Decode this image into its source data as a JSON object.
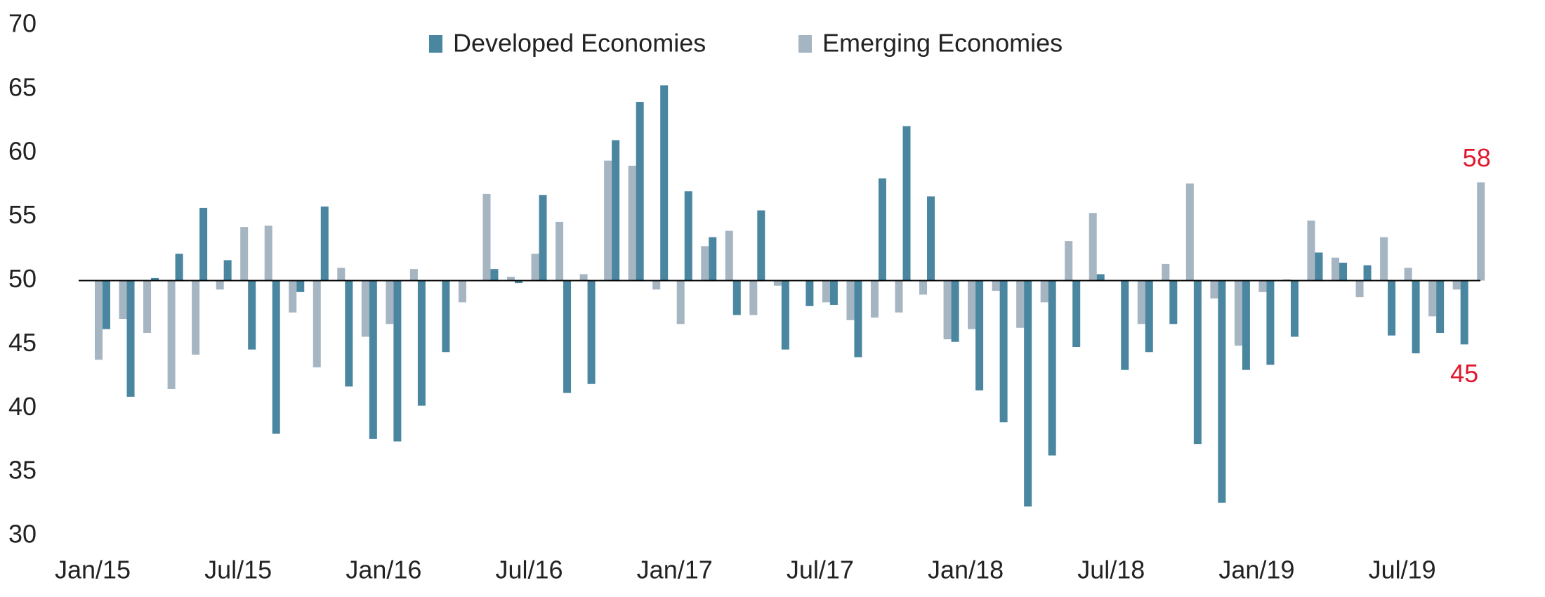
{
  "chart_data": {
    "type": "bar",
    "categories": [
      "Jan/15",
      null,
      null,
      null,
      null,
      null,
      "Jul/15",
      null,
      null,
      null,
      null,
      null,
      "Jan/16",
      null,
      null,
      null,
      null,
      null,
      "Jul/16",
      null,
      null,
      null,
      null,
      null,
      "Jan/17",
      null,
      null,
      null,
      null,
      null,
      "Jul/17",
      null,
      null,
      null,
      null,
      null,
      "Jan/18",
      null,
      null,
      null,
      null,
      null,
      "Jul/18",
      null,
      null,
      null,
      null,
      null,
      "Jan/19",
      null,
      null,
      null,
      null,
      null,
      "Jul/19",
      null,
      null,
      null
    ],
    "series": [
      {
        "name": "Developed Economies",
        "color": "#4a86a0",
        "values": [
          46.2,
          40.9,
          50.2,
          52.1,
          55.7,
          51.6,
          44.6,
          38.0,
          49.1,
          55.8,
          41.7,
          37.6,
          37.4,
          40.2,
          44.4,
          50.0,
          50.9,
          49.8,
          56.7,
          41.2,
          41.9,
          61.0,
          64.0,
          65.3,
          57.0,
          53.4,
          47.3,
          55.5,
          44.6,
          48.0,
          48.1,
          44.0,
          58.0,
          62.1,
          56.6,
          45.2,
          41.4,
          38.9,
          32.3,
          36.3,
          44.8,
          50.5,
          43.0,
          44.4,
          46.6,
          37.2,
          32.6,
          43.0,
          43.4,
          45.6,
          52.2,
          51.4,
          51.2,
          45.7,
          44.3,
          45.9,
          45.0,
          null
        ],
        "value_labels": [
          null,
          null,
          null,
          null,
          null,
          null,
          null,
          null,
          null,
          null,
          null,
          null,
          null,
          null,
          null,
          null,
          null,
          null,
          null,
          null,
          null,
          null,
          null,
          null,
          null,
          null,
          null,
          null,
          null,
          null,
          null,
          null,
          null,
          null,
          null,
          null,
          null,
          null,
          null,
          null,
          null,
          null,
          null,
          null,
          null,
          null,
          null,
          null,
          null,
          null,
          null,
          null,
          null,
          null,
          null,
          null,
          "45",
          null
        ]
      },
      {
        "name": "Emerging Economies",
        "color": "#a5b5c2",
        "values": [
          43.8,
          47.0,
          45.9,
          41.5,
          44.2,
          49.3,
          54.2,
          54.3,
          47.5,
          43.2,
          51.0,
          45.6,
          46.6,
          50.9,
          50.0,
          48.3,
          56.8,
          50.3,
          52.1,
          54.6,
          50.5,
          59.4,
          59.0,
          49.3,
          46.6,
          52.7,
          53.9,
          47.3,
          49.6,
          50.0,
          48.3,
          46.9,
          47.1,
          47.5,
          48.9,
          45.4,
          46.2,
          49.2,
          46.3,
          48.3,
          53.1,
          55.3,
          50.0,
          46.6,
          51.3,
          57.6,
          48.6,
          44.9,
          49.1,
          50.1,
          54.7,
          51.8,
          48.7,
          53.4,
          51.0,
          47.2,
          49.3,
          57.7
        ],
        "value_labels": [
          null,
          null,
          null,
          null,
          null,
          null,
          null,
          null,
          null,
          null,
          null,
          null,
          null,
          null,
          null,
          null,
          null,
          null,
          null,
          null,
          null,
          null,
          null,
          null,
          null,
          null,
          null,
          null,
          null,
          null,
          null,
          null,
          null,
          null,
          null,
          null,
          null,
          null,
          null,
          null,
          null,
          null,
          null,
          null,
          null,
          null,
          null,
          null,
          null,
          null,
          null,
          null,
          null,
          null,
          null,
          null,
          null,
          "58"
        ]
      }
    ],
    "value_label_color": "#e0182d",
    "baseline": 50,
    "ylim": [
      30,
      70
    ],
    "yticks": [
      30,
      35,
      40,
      45,
      50,
      55,
      60,
      65,
      70
    ],
    "legend": "top"
  }
}
